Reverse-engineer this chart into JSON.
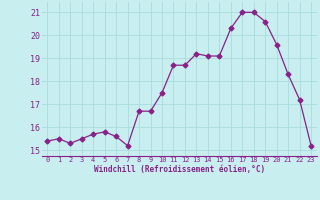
{
  "x": [
    0,
    1,
    2,
    3,
    4,
    5,
    6,
    7,
    8,
    9,
    10,
    11,
    12,
    13,
    14,
    15,
    16,
    17,
    18,
    19,
    20,
    21,
    22,
    23
  ],
  "y": [
    15.4,
    15.5,
    15.3,
    15.5,
    15.7,
    15.8,
    15.6,
    15.2,
    16.7,
    16.7,
    17.5,
    18.7,
    18.7,
    19.2,
    19.1,
    19.1,
    20.3,
    21.0,
    21.0,
    20.6,
    19.6,
    18.3,
    17.2,
    15.2
  ],
  "line_color": "#882288",
  "marker": "D",
  "marker_size": 2.5,
  "xlabel": "Windchill (Refroidissement éolien,°C)",
  "ylabel_ticks": [
    15,
    16,
    17,
    18,
    19,
    20,
    21
  ],
  "xtick_labels": [
    "0",
    "1",
    "2",
    "3",
    "4",
    "5",
    "6",
    "7",
    "8",
    "9",
    "10",
    "11",
    "12",
    "13",
    "14",
    "15",
    "16",
    "17",
    "18",
    "19",
    "20",
    "21",
    "22",
    "23"
  ],
  "ylim": [
    14.75,
    21.45
  ],
  "xlim": [
    -0.5,
    23.5
  ],
  "background_color": "#c8eef0",
  "grid_color": "#aadddd",
  "spine_color": "#882288"
}
